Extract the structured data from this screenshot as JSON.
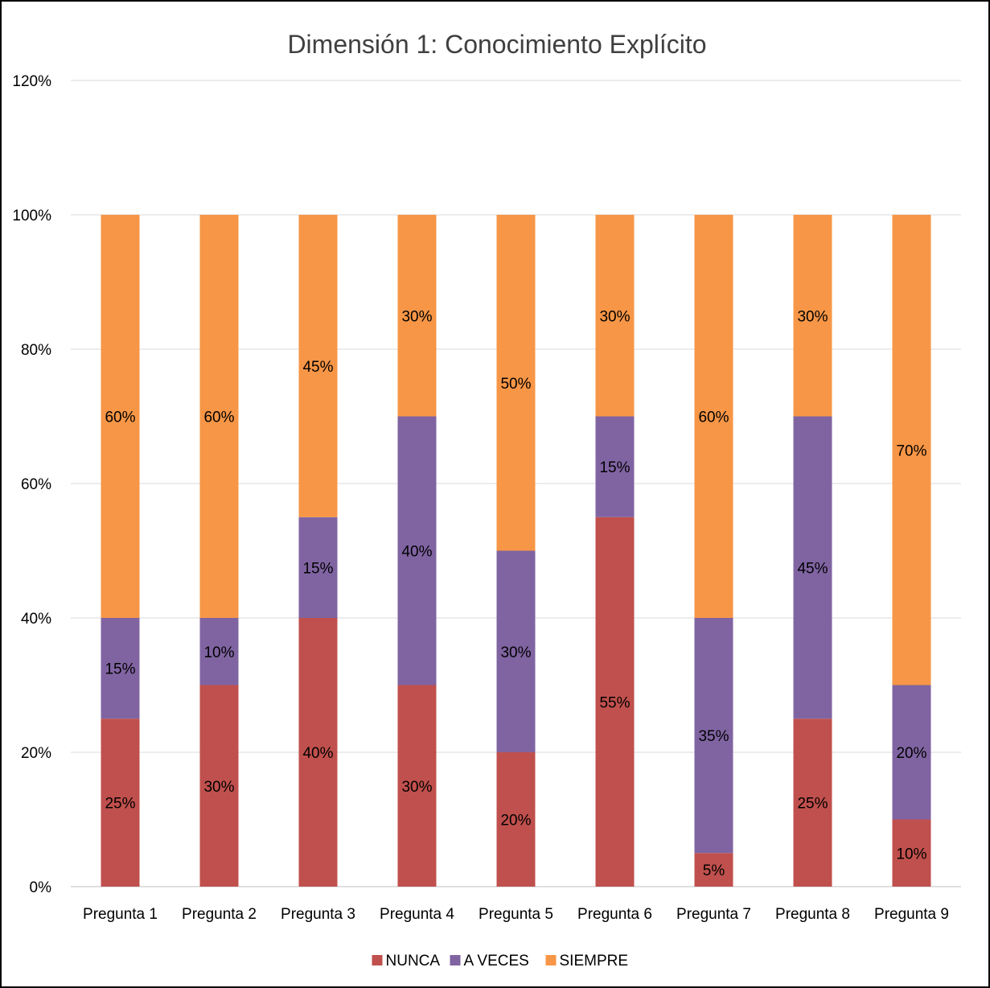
{
  "chart_data": {
    "type": "bar",
    "stacked": true,
    "title": "Dimensión 1: Conocimiento Explícito",
    "xlabel": "",
    "ylabel": "",
    "ylim": [
      0,
      120
    ],
    "yticks": [
      "0%",
      "20%",
      "40%",
      "60%",
      "80%",
      "100%",
      "120%"
    ],
    "ytick_values": [
      0,
      20,
      40,
      60,
      80,
      100,
      120
    ],
    "grid": true,
    "legend_position": "bottom",
    "categories": [
      "Pregunta 1",
      "Pregunta 2",
      "Pregunta 3",
      "Pregunta 4",
      "Pregunta 5",
      "Pregunta 6",
      "Pregunta 7",
      "Pregunta 8",
      "Pregunta 9"
    ],
    "series": [
      {
        "name": "NUNCA",
        "color": "#C0504D",
        "values": [
          25,
          30,
          40,
          30,
          20,
          55,
          5,
          25,
          10
        ],
        "labels": [
          "25%",
          "30%",
          "40%",
          "30%",
          "20%",
          "55%",
          "5%",
          "25%",
          "10%"
        ]
      },
      {
        "name": "A VECES",
        "color": "#8064A2",
        "values": [
          15,
          10,
          15,
          40,
          30,
          15,
          35,
          45,
          20
        ],
        "labels": [
          "15%",
          "10%",
          "15%",
          "40%",
          "30%",
          "15%",
          "35%",
          "45%",
          "20%"
        ]
      },
      {
        "name": "SIEMPRE",
        "color": "#F79646",
        "values": [
          60,
          60,
          45,
          30,
          50,
          30,
          60,
          30,
          70
        ],
        "labels": [
          "60%",
          "60%",
          "45%",
          "30%",
          "50%",
          "30%",
          "60%",
          "30%",
          "70%"
        ]
      }
    ]
  }
}
